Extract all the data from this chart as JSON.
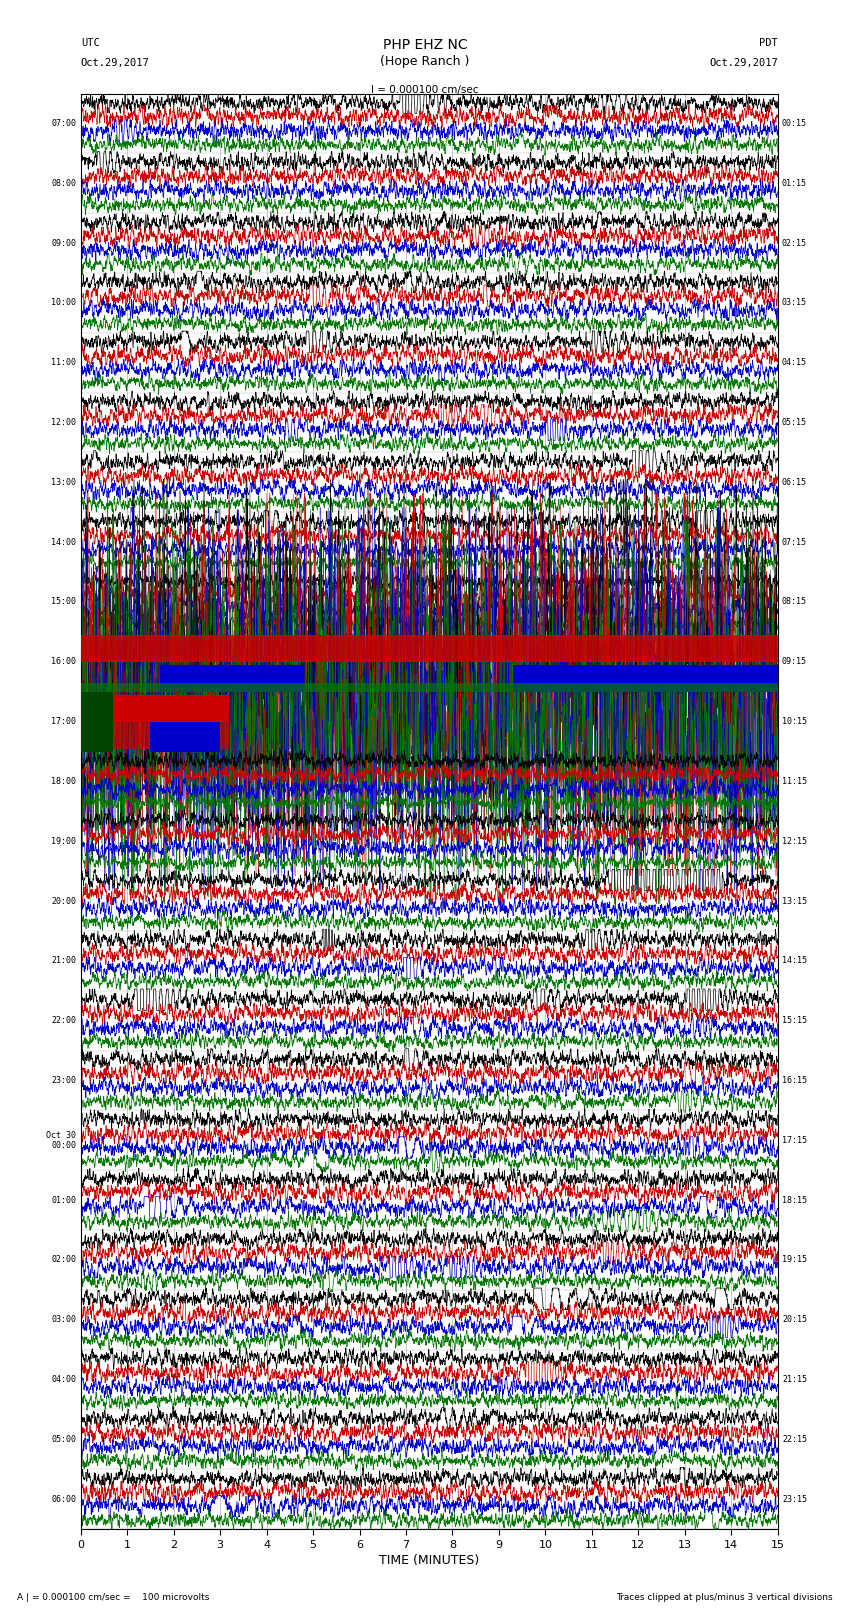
{
  "title_line1": "PHP EHZ NC",
  "title_line2": "(Hope Ranch )",
  "scale_label": "I = 0.000100 cm/sec",
  "utc_label": "UTC\nOct.29,2017",
  "pdt_label": "PDT\nOct.29,2017",
  "xlabel": "TIME (MINUTES)",
  "footer_left": "A | = 0.000100 cm/sec =    100 microvolts",
  "footer_right": "Traces clipped at plus/minus 3 vertical divisions",
  "left_times": [
    "07:00",
    "08:00",
    "09:00",
    "10:00",
    "11:00",
    "12:00",
    "13:00",
    "14:00",
    "15:00",
    "16:00",
    "17:00",
    "18:00",
    "19:00",
    "20:00",
    "21:00",
    "22:00",
    "23:00",
    "Oct 30\n00:00",
    "01:00",
    "02:00",
    "03:00",
    "04:00",
    "05:00",
    "06:00"
  ],
  "right_times": [
    "00:15",
    "01:15",
    "02:15",
    "03:15",
    "04:15",
    "05:15",
    "06:15",
    "07:15",
    "08:15",
    "09:15",
    "10:15",
    "11:15",
    "12:15",
    "13:15",
    "14:15",
    "15:15",
    "16:15",
    "17:15",
    "18:15",
    "19:15",
    "20:15",
    "21:15",
    "22:15",
    "23:15"
  ],
  "n_rows": 24,
  "x_min": 0,
  "x_max": 15,
  "x_ticks": [
    0,
    1,
    2,
    3,
    4,
    5,
    6,
    7,
    8,
    9,
    10,
    11,
    12,
    13,
    14,
    15
  ],
  "colors": {
    "black": "#000000",
    "red": "#cc0000",
    "blue": "#0000cc",
    "green": "#007700",
    "background": "#ffffff"
  },
  "trace_amplitude": 0.06,
  "n_pts": 3000
}
